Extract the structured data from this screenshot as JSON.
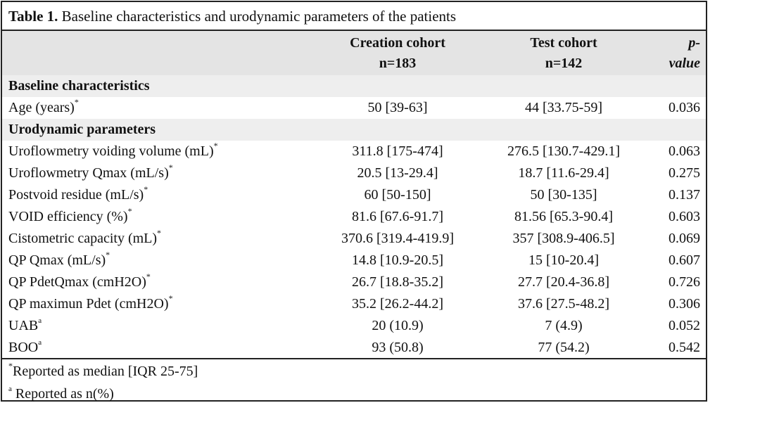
{
  "table": {
    "caption_label": "Table 1.",
    "caption_text": " Baseline characteristics and urodynamic parameters of the patients",
    "headers": {
      "creation_name": "Creation cohort",
      "creation_n": "n=183",
      "test_name": "Test cohort",
      "test_n": "n=142",
      "pvalue_line1": "p-",
      "pvalue_line2": "value"
    },
    "sections": [
      {
        "title": "Baseline characteristics",
        "rows": [
          {
            "label": "Age (years)",
            "mark": "*",
            "creation": "50 [39-63]",
            "test": "44 [33.75-59]",
            "p": "0.036"
          }
        ]
      },
      {
        "title": "Urodynamic parameters",
        "rows": [
          {
            "label": "Uroflowmetry voiding volume (mL)",
            "mark": "*",
            "creation": "311.8 [175-474]",
            "test": "276.5 [130.7-429.1]",
            "p": "0.063"
          },
          {
            "label": "Uroflowmetry Qmax (mL/s)",
            "mark": "*",
            "creation": "20.5 [13-29.4]",
            "test": "18.7 [11.6-29.4]",
            "p": "0.275"
          },
          {
            "label": "Postvoid residue (mL/s)",
            "mark": "*",
            "creation": "60 [50-150]",
            "test": "50 [30-135]",
            "p": "0.137"
          },
          {
            "label": "VOID efficiency (%)",
            "mark": "*",
            "creation": "81.6 [67.6-91.7]",
            "test": "81.56 [65.3-90.4]",
            "p": "0.603"
          },
          {
            "label": "Cistometric capacity (mL)",
            "mark": "*",
            "creation": "370.6 [319.4-419.9]",
            "test": "357 [308.9-406.5]",
            "p": "0.069"
          },
          {
            "label": "QP Qmax (mL/s)",
            "mark": "*",
            "creation": "14.8 [10.9-20.5]",
            "test": "15 [10-20.4]",
            "p": "0.607"
          },
          {
            "label": "QP PdetQmax (cmH2O)",
            "mark": "*",
            "creation": "26.7 [18.8-35.2]",
            "test": "27.7 [20.4-36.8]",
            "p": "0.726"
          },
          {
            "label": "QP maximun Pdet (cmH2O)",
            "mark": "*",
            "creation": "35.2 [26.2-44.2]",
            "test": "37.6 [27.5-48.2]",
            "p": "0.306"
          },
          {
            "label": "UAB",
            "mark": "a",
            "creation": "20 (10.9)",
            "test": "7 (4.9)",
            "p": "0.052"
          },
          {
            "label": "BOO",
            "mark": "a",
            "creation": "93 (50.8)",
            "test": "77 (54.2)",
            "p": "0.542"
          }
        ]
      }
    ],
    "footnotes": [
      {
        "mark": "*",
        "text": "Reported as median [IQR 25-75]"
      },
      {
        "mark": "a",
        "text": " Reported as n(%)"
      }
    ]
  }
}
